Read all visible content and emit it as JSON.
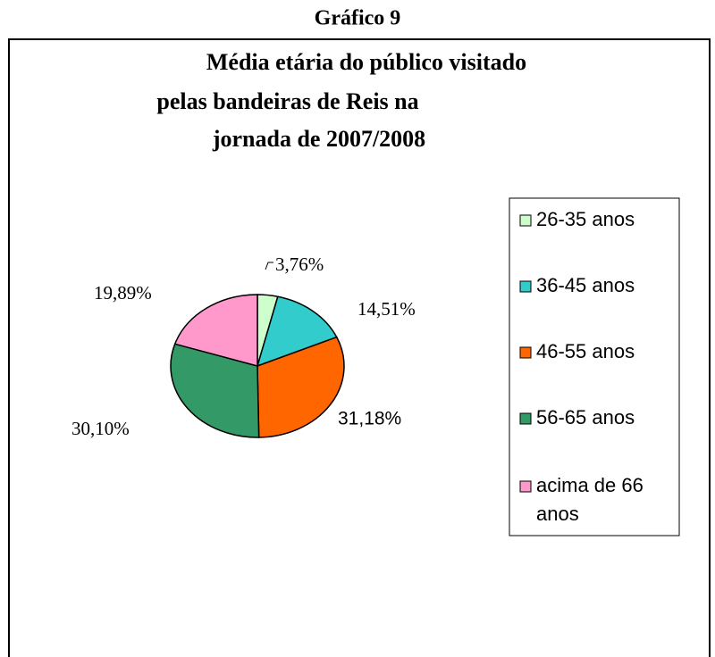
{
  "heading": "Gráfico 9",
  "chart_data": {
    "type": "pie",
    "title": [
      "Média etária do público visitado",
      "pelas bandeiras de Reis na",
      "jornada de 2007/2008"
    ],
    "categories": [
      "26-35 anos",
      "36-45 anos",
      "46-55 anos",
      "56-65 anos",
      "acima de 66 anos"
    ],
    "values": [
      3.76,
      14.51,
      31.18,
      30.1,
      19.89
    ],
    "value_labels": [
      "3,76%",
      "14,51%",
      "31,18%",
      "30,10%",
      "19,89%"
    ],
    "colors": [
      "#ccffcc",
      "#33cccc",
      "#ff6600",
      "#339966",
      "#ff99cc"
    ],
    "legend": "right"
  }
}
